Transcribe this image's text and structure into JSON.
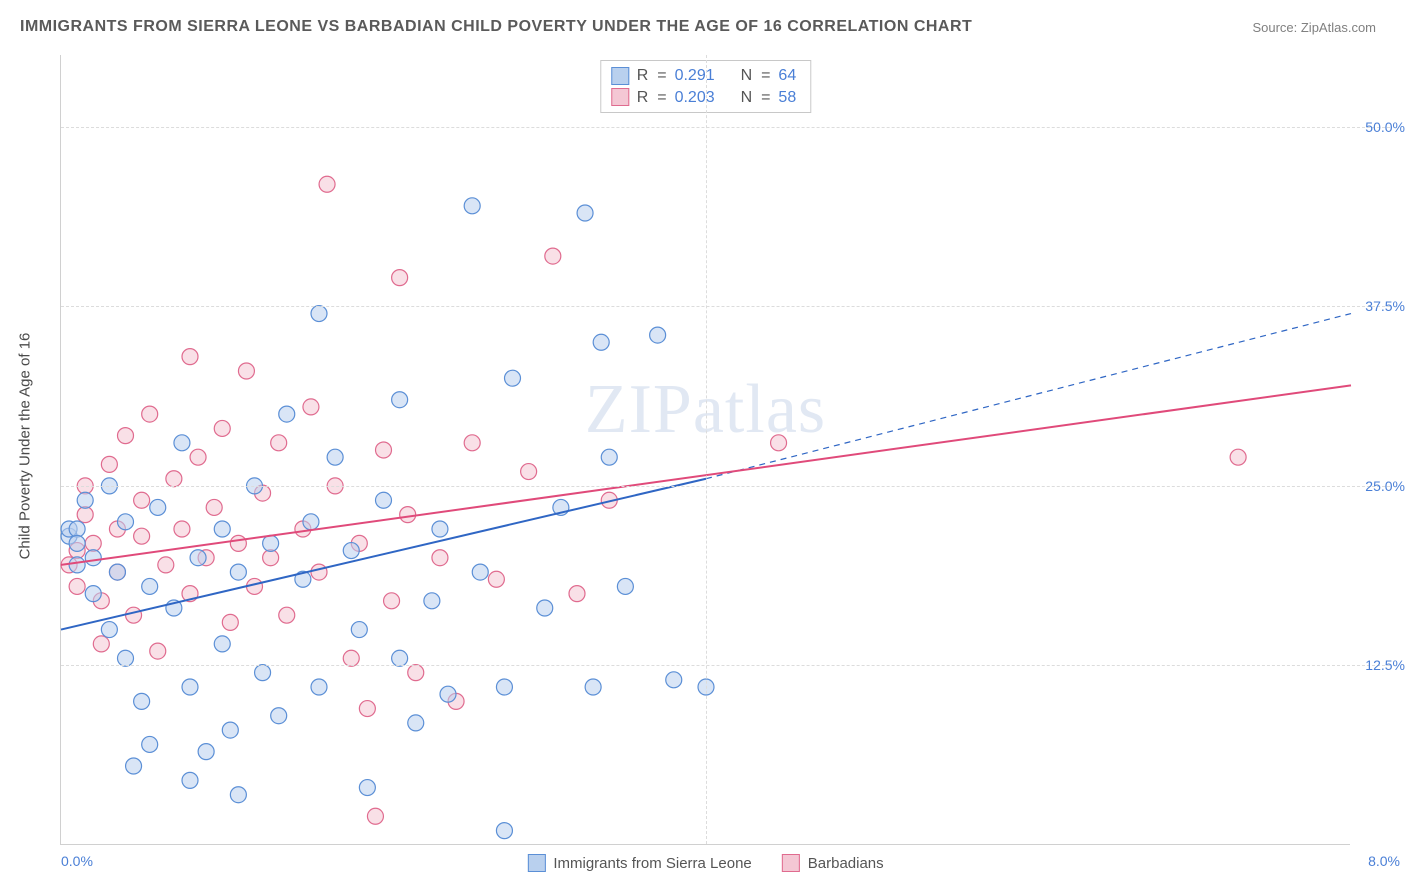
{
  "title": "IMMIGRANTS FROM SIERRA LEONE VS BARBADIAN CHILD POVERTY UNDER THE AGE OF 16 CORRELATION CHART",
  "source_label": "Source: ZipAtlas.com",
  "ylabel": "Child Poverty Under the Age of 16",
  "watermark": "ZIPatlas",
  "chart": {
    "type": "scatter",
    "xlim": [
      0,
      8
    ],
    "ylim": [
      0,
      55
    ],
    "x_ticks": [
      {
        "v": 0,
        "label": "0.0%"
      },
      {
        "v": 8,
        "label": "8.0%"
      }
    ],
    "y_ticks": [
      {
        "v": 12.5,
        "label": "12.5%"
      },
      {
        "v": 25,
        "label": "25.0%"
      },
      {
        "v": 37.5,
        "label": "37.5%"
      },
      {
        "v": 50,
        "label": "50.0%"
      }
    ],
    "x_grid_at": 4,
    "grid_color": "#dcdcdc",
    "background_color": "#ffffff",
    "marker_radius": 8,
    "marker_stroke_width": 1.2,
    "series": [
      {
        "key": "sierra_leone",
        "label": "Immigrants from Sierra Leone",
        "fill": "#b9d0ee",
        "stroke": "#5b8fd6",
        "fill_opacity": 0.55,
        "R": "0.291",
        "N": "64",
        "trend": {
          "x1": 0,
          "y1": 15.0,
          "x2": 4.0,
          "y2": 25.5,
          "x2_dash": 8.0,
          "y2_dash": 37.0,
          "color": "#2f66c4",
          "width": 2
        },
        "points": [
          [
            0.05,
            21.5
          ],
          [
            0.05,
            22.0
          ],
          [
            0.1,
            22.0
          ],
          [
            0.1,
            21.0
          ],
          [
            0.1,
            19.5
          ],
          [
            0.15,
            24.0
          ],
          [
            0.2,
            20.0
          ],
          [
            0.2,
            17.5
          ],
          [
            0.3,
            25.0
          ],
          [
            0.3,
            15.0
          ],
          [
            0.35,
            19.0
          ],
          [
            0.4,
            13.0
          ],
          [
            0.4,
            22.5
          ],
          [
            0.5,
            10.0
          ],
          [
            0.55,
            18.0
          ],
          [
            0.55,
            7.0
          ],
          [
            0.6,
            23.5
          ],
          [
            0.7,
            16.5
          ],
          [
            0.75,
            28.0
          ],
          [
            0.8,
            11.0
          ],
          [
            0.8,
            4.5
          ],
          [
            0.85,
            20.0
          ],
          [
            0.9,
            6.5
          ],
          [
            1.0,
            14.0
          ],
          [
            1.0,
            22.0
          ],
          [
            1.05,
            8.0
          ],
          [
            1.1,
            19.0
          ],
          [
            1.1,
            3.5
          ],
          [
            1.2,
            25.0
          ],
          [
            1.25,
            12.0
          ],
          [
            1.3,
            21.0
          ],
          [
            1.35,
            9.0
          ],
          [
            1.4,
            30.0
          ],
          [
            1.5,
            18.5
          ],
          [
            1.55,
            22.5
          ],
          [
            1.6,
            11.0
          ],
          [
            1.6,
            37.0
          ],
          [
            1.7,
            27.0
          ],
          [
            1.8,
            20.5
          ],
          [
            1.85,
            15.0
          ],
          [
            1.9,
            4.0
          ],
          [
            2.0,
            24.0
          ],
          [
            2.1,
            31.0
          ],
          [
            2.1,
            13.0
          ],
          [
            2.2,
            8.5
          ],
          [
            2.3,
            17.0
          ],
          [
            2.35,
            22.0
          ],
          [
            2.4,
            10.5
          ],
          [
            2.55,
            44.5
          ],
          [
            2.6,
            19.0
          ],
          [
            2.75,
            1.0
          ],
          [
            2.75,
            11.0
          ],
          [
            2.8,
            32.5
          ],
          [
            3.0,
            16.5
          ],
          [
            3.1,
            23.5
          ],
          [
            3.25,
            44.0
          ],
          [
            3.3,
            11.0
          ],
          [
            3.35,
            35.0
          ],
          [
            3.4,
            27.0
          ],
          [
            3.5,
            18.0
          ],
          [
            3.7,
            35.5
          ],
          [
            3.8,
            11.5
          ],
          [
            4.0,
            11.0
          ],
          [
            0.45,
            5.5
          ]
        ]
      },
      {
        "key": "barbadians",
        "label": "Barbadians",
        "fill": "#f4c7d4",
        "stroke": "#e06b8f",
        "fill_opacity": 0.55,
        "R": "0.203",
        "N": "58",
        "trend": {
          "x1": 0,
          "y1": 19.5,
          "x2": 8.0,
          "y2": 32.0,
          "color": "#e04a7a",
          "width": 2
        },
        "points": [
          [
            0.05,
            19.5
          ],
          [
            0.1,
            20.5
          ],
          [
            0.1,
            18.0
          ],
          [
            0.15,
            23.0
          ],
          [
            0.15,
            25.0
          ],
          [
            0.2,
            21.0
          ],
          [
            0.25,
            17.0
          ],
          [
            0.25,
            14.0
          ],
          [
            0.3,
            26.5
          ],
          [
            0.35,
            19.0
          ],
          [
            0.35,
            22.0
          ],
          [
            0.4,
            28.5
          ],
          [
            0.45,
            16.0
          ],
          [
            0.5,
            21.5
          ],
          [
            0.5,
            24.0
          ],
          [
            0.55,
            30.0
          ],
          [
            0.6,
            13.5
          ],
          [
            0.65,
            19.5
          ],
          [
            0.7,
            25.5
          ],
          [
            0.75,
            22.0
          ],
          [
            0.8,
            17.5
          ],
          [
            0.8,
            34.0
          ],
          [
            0.85,
            27.0
          ],
          [
            0.9,
            20.0
          ],
          [
            0.95,
            23.5
          ],
          [
            1.0,
            29.0
          ],
          [
            1.05,
            15.5
          ],
          [
            1.1,
            21.0
          ],
          [
            1.15,
            33.0
          ],
          [
            1.2,
            18.0
          ],
          [
            1.25,
            24.5
          ],
          [
            1.3,
            20.0
          ],
          [
            1.35,
            28.0
          ],
          [
            1.4,
            16.0
          ],
          [
            1.5,
            22.0
          ],
          [
            1.55,
            30.5
          ],
          [
            1.6,
            19.0
          ],
          [
            1.65,
            46.0
          ],
          [
            1.7,
            25.0
          ],
          [
            1.8,
            13.0
          ],
          [
            1.85,
            21.0
          ],
          [
            1.9,
            9.5
          ],
          [
            1.95,
            2.0
          ],
          [
            2.0,
            27.5
          ],
          [
            2.05,
            17.0
          ],
          [
            2.1,
            39.5
          ],
          [
            2.15,
            23.0
          ],
          [
            2.2,
            12.0
          ],
          [
            2.35,
            20.0
          ],
          [
            2.45,
            10.0
          ],
          [
            2.55,
            28.0
          ],
          [
            2.7,
            18.5
          ],
          [
            2.9,
            26.0
          ],
          [
            3.05,
            41.0
          ],
          [
            3.2,
            17.5
          ],
          [
            3.4,
            24.0
          ],
          [
            4.45,
            28.0
          ],
          [
            7.3,
            27.0
          ]
        ]
      }
    ]
  },
  "legend_top": {
    "r_prefix": "R  =",
    "n_prefix": "N  ="
  },
  "colors": {
    "title": "#5a5a5a",
    "axis_text": "#4a7fd6",
    "body_text": "#555555"
  }
}
